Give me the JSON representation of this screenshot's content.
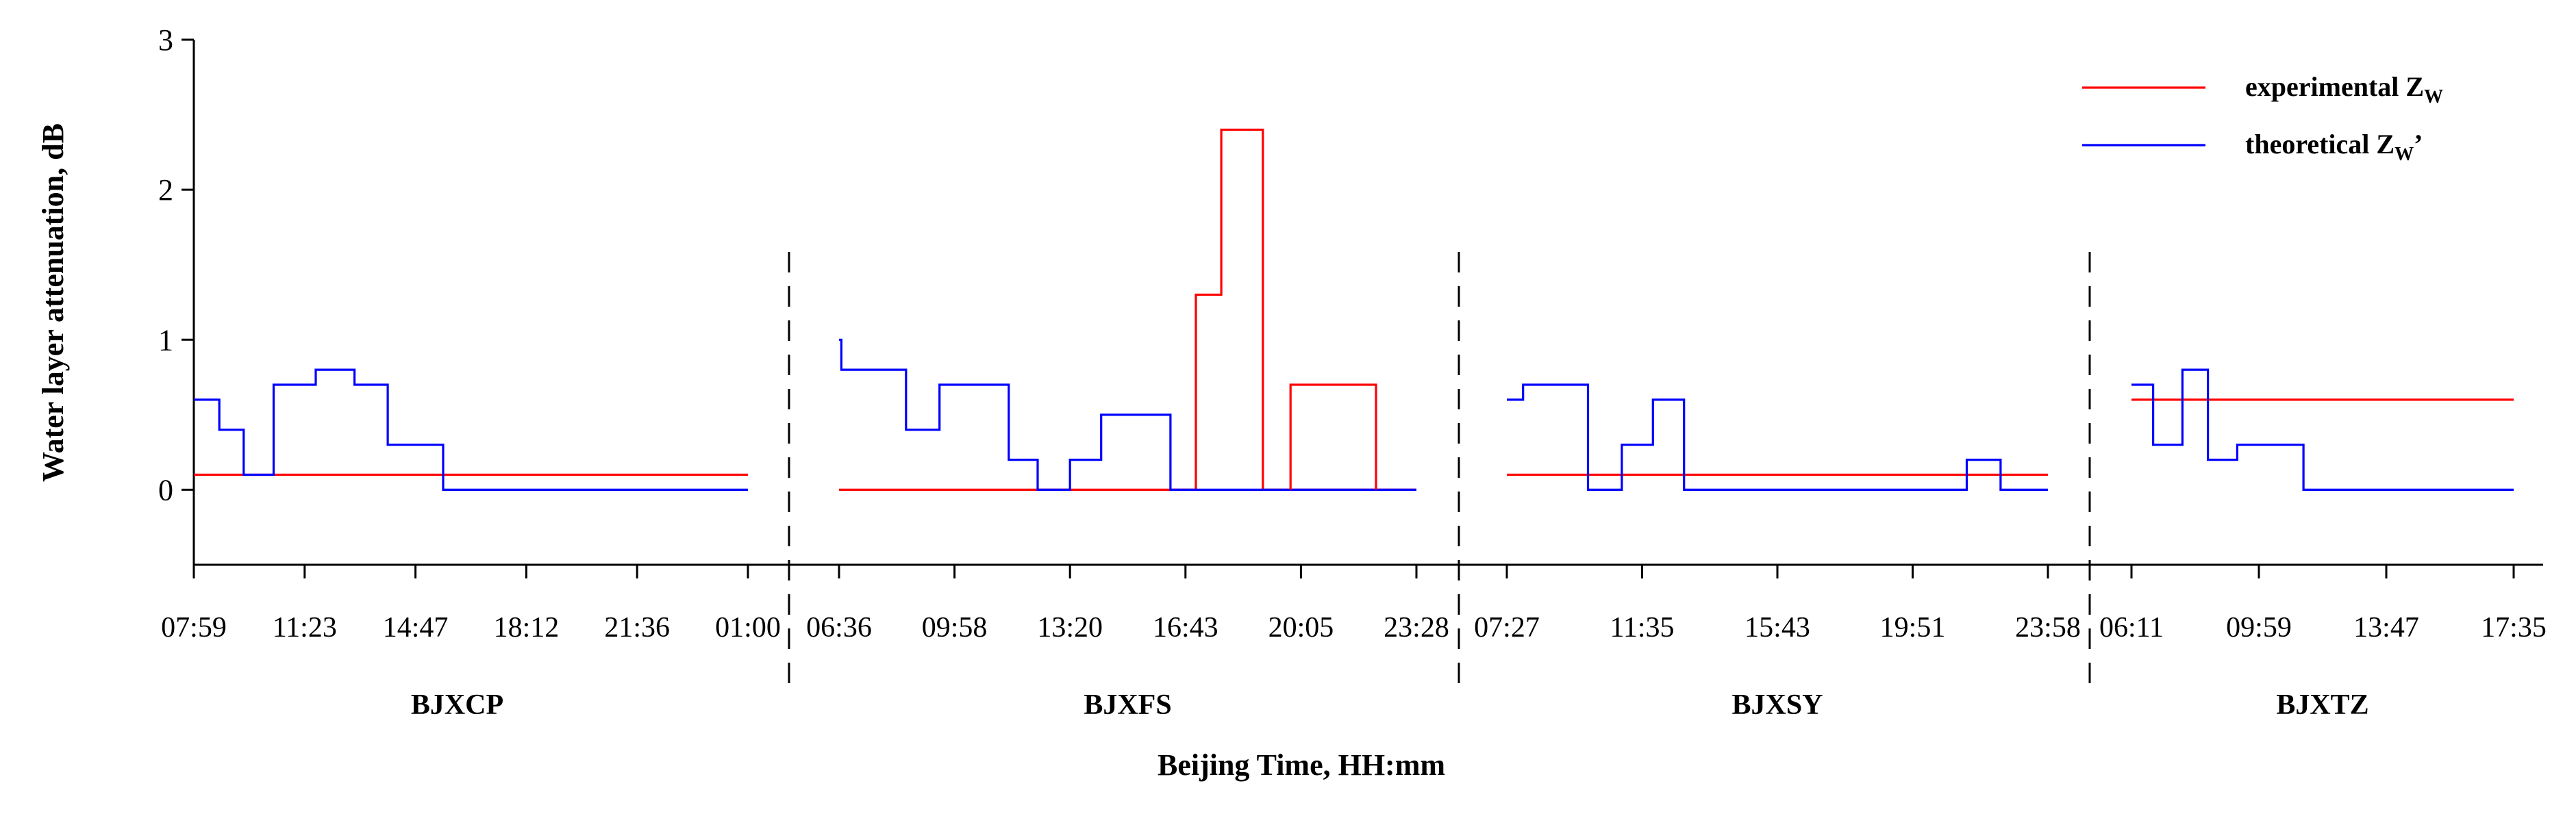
{
  "chart_data": {
    "type": "line",
    "ylabel": "Water layer attenuation, dB",
    "xlabel": "Beijing Time, HH:mm",
    "ylim": [
      -0.5,
      3
    ],
    "yticks": [
      "0",
      "1",
      "2",
      "3"
    ],
    "legend": {
      "placement": "top-right",
      "entries": [
        {
          "label": "experimental Z",
          "subscript": "W",
          "suffix": "",
          "color": "#ff0000"
        },
        {
          "label": "theoretical Z",
          "subscript": "W",
          "suffix": "’",
          "color": "#0000ff"
        }
      ]
    },
    "panels": [
      {
        "site": "BJXCP",
        "x_ticks": [
          "07:59",
          "11:23",
          "14:47",
          "18:12",
          "21:36",
          "01:00"
        ],
        "series": [
          {
            "name": "experimental Z_W",
            "color": "#ff0000",
            "x": [
              0,
              5
            ],
            "y": [
              0.1,
              0.1
            ]
          },
          {
            "name": "theoretical Z_W'",
            "color": "#0000ff",
            "x": [
              0,
              0.23,
              0.23,
              0.45,
              0.45,
              0.72,
              0.72,
              1.1,
              1.1,
              1.45,
              1.45,
              1.75,
              1.75,
              2.25,
              2.25,
              4.7,
              4.7,
              5.0
            ],
            "y": [
              0.6,
              0.6,
              0.4,
              0.4,
              0.1,
              0.1,
              0.7,
              0.7,
              0.8,
              0.8,
              0.7,
              0.7,
              0.3,
              0.3,
              0.0,
              0.0,
              0.0,
              0.0
            ]
          }
        ]
      },
      {
        "site": "BJXFS",
        "x_ticks": [
          "06:36",
          "09:58",
          "13:20",
          "16:43",
          "20:05",
          "23:28"
        ],
        "series": [
          {
            "name": "experimental Z_W",
            "color": "#ff0000",
            "x": [
              0,
              3.09,
              3.09,
              3.31,
              3.31,
              3.67,
              3.67,
              3.91,
              3.91,
              5.0
            ],
            "y": [
              0.0,
              0.0,
              1.3,
              1.3,
              2.4,
              2.4,
              0.0,
              0.0,
              0.0,
              0.0
            ]
          },
          {
            "name": "theoretical Z_W'",
            "color": "#0000ff",
            "x": [
              0,
              0.02,
              0.02,
              0.58,
              0.58,
              0.87,
              0.87,
              1.47,
              1.47,
              1.72,
              1.72,
              2.0,
              2.0,
              2.27,
              2.27,
              2.87,
              2.87,
              5.0
            ],
            "y": [
              1.0,
              1.0,
              0.8,
              0.8,
              0.4,
              0.4,
              0.7,
              0.7,
              0.2,
              0.2,
              0.0,
              0.0,
              0.2,
              0.2,
              0.5,
              0.5,
              0.0,
              0.0
            ]
          },
          {
            "name": "experimental Z_W (tail)",
            "color": "#ff0000",
            "x": [
              3.91,
              3.91,
              4.65,
              4.65
            ],
            "y": [
              0.0,
              0.7,
              0.7,
              0.0
            ]
          }
        ]
      },
      {
        "site": "BJXSY",
        "x_ticks": [
          "07:27",
          "11:35",
          "15:43",
          "19:51",
          "23:58"
        ],
        "series": [
          {
            "name": "experimental Z_W",
            "color": "#ff0000",
            "x": [
              0,
              4.0
            ],
            "y": [
              0.1,
              0.1
            ]
          },
          {
            "name": "theoretical Z_W'",
            "color": "#0000ff",
            "x": [
              0,
              0.12,
              0.12,
              0.6,
              0.6,
              0.85,
              0.85,
              1.08,
              1.08,
              1.31,
              1.31,
              3.4,
              3.4,
              3.65,
              3.65,
              4.0
            ],
            "y": [
              0.6,
              0.6,
              0.7,
              0.7,
              0.0,
              0.0,
              0.3,
              0.3,
              0.6,
              0.6,
              0.0,
              0.0,
              0.2,
              0.2,
              0.0,
              0.0
            ]
          }
        ]
      },
      {
        "site": "BJXTZ",
        "x_ticks": [
          "06:11",
          "09:59",
          "13:47",
          "17:35"
        ],
        "series": [
          {
            "name": "experimental Z_W",
            "color": "#ff0000",
            "x": [
              0,
              3.0
            ],
            "y": [
              0.6,
              0.6
            ]
          },
          {
            "name": "theoretical Z_W'",
            "color": "#0000ff",
            "x": [
              0,
              0.17,
              0.17,
              0.4,
              0.4,
              0.6,
              0.6,
              0.83,
              0.83,
              0.98,
              0.98,
              1.35,
              1.35,
              3.0
            ],
            "y": [
              0.7,
              0.7,
              0.3,
              0.3,
              0.8,
              0.8,
              0.2,
              0.2,
              0.3,
              0.3,
              0.3,
              0.3,
              0.0,
              0.0
            ]
          }
        ]
      }
    ]
  }
}
